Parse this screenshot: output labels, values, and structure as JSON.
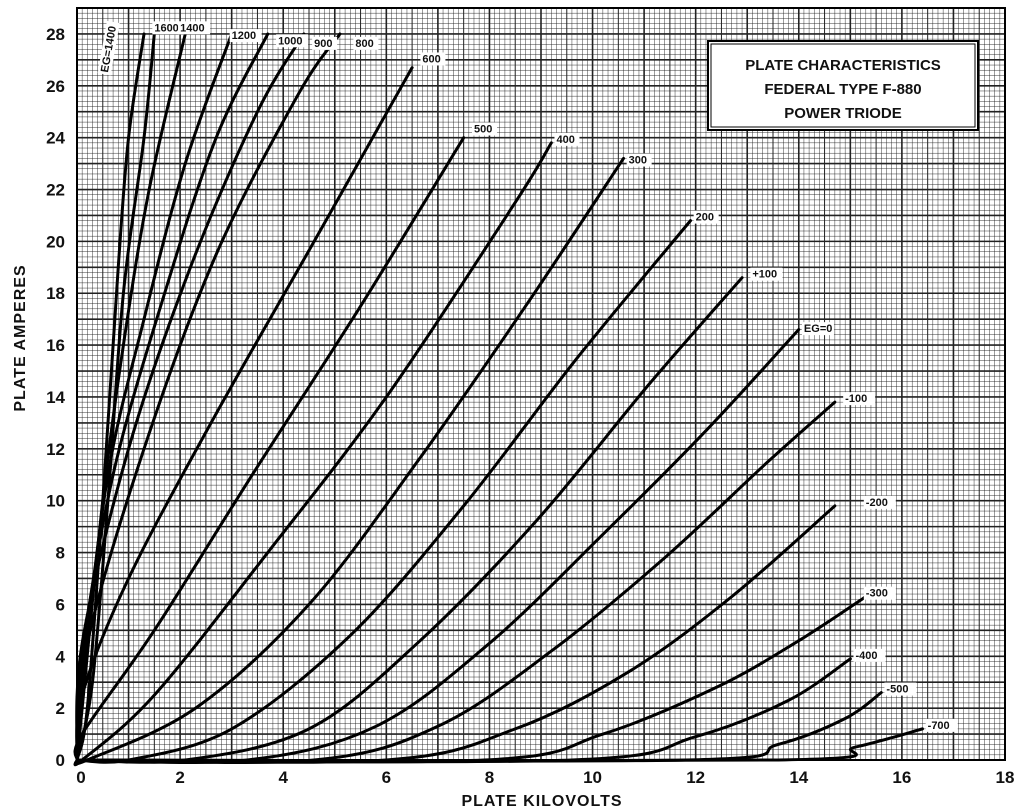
{
  "chart_data": {
    "type": "line",
    "title_lines": [
      "PLATE CHARACTERISTICS",
      "FEDERAL TYPE F-880",
      "POWER TRIODE"
    ],
    "xlabel": "PLATE KILOVOLTS",
    "ylabel": "PLATE AMPERES",
    "xlim": [
      0,
      18
    ],
    "ylim": [
      0,
      29
    ],
    "xticks": [
      0,
      2,
      4,
      6,
      8,
      10,
      12,
      14,
      16,
      18
    ],
    "yticks": [
      0,
      2,
      4,
      6,
      8,
      10,
      12,
      14,
      16,
      18,
      20,
      22,
      24,
      26,
      28
    ],
    "xtick_labels": [
      "0",
      "2",
      "4",
      "6",
      "8",
      "10",
      "12",
      "14",
      "16",
      "18"
    ],
    "ytick_labels": [
      "0",
      "2",
      "4",
      "6",
      "8",
      "10",
      "12",
      "14",
      "16",
      "18",
      "20",
      "22",
      "24",
      "26",
      "28"
    ],
    "grid": true,
    "series": [
      {
        "name": "EG=1400",
        "points": [
          [
            0.2,
            2
          ],
          [
            0.5,
            10
          ],
          [
            0.8,
            19
          ],
          [
            1.0,
            24
          ],
          [
            1.3,
            28
          ]
        ]
      },
      {
        "name": "1600",
        "points": [
          [
            0.3,
            3
          ],
          [
            0.6,
            10
          ],
          [
            0.9,
            18
          ],
          [
            1.3,
            24
          ],
          [
            1.5,
            28
          ]
        ]
      },
      {
        "name": "1400",
        "points": [
          [
            0.1,
            2
          ],
          [
            0.5,
            10
          ],
          [
            0.9,
            16
          ],
          [
            1.4,
            22
          ],
          [
            2.1,
            28
          ]
        ]
      },
      {
        "name": "1200",
        "points": [
          [
            0.1,
            3
          ],
          [
            0.6,
            11
          ],
          [
            1.3,
            17
          ],
          [
            2.1,
            23
          ],
          [
            3.0,
            28
          ]
        ]
      },
      {
        "name": "1000",
        "points": [
          [
            0.1,
            4
          ],
          [
            0.7,
            11
          ],
          [
            1.7,
            18
          ],
          [
            2.7,
            24
          ],
          [
            3.7,
            28
          ]
        ]
      },
      {
        "name": "900",
        "points": [
          [
            0.1,
            4.5
          ],
          [
            1.0,
            12
          ],
          [
            2.2,
            19
          ],
          [
            3.5,
            25
          ],
          [
            4.4,
            28
          ]
        ]
      },
      {
        "name": "800",
        "points": [
          [
            0.2,
            4.5
          ],
          [
            1.3,
            12
          ],
          [
            2.7,
            19.5
          ],
          [
            4.3,
            25.7
          ],
          [
            5.1,
            28
          ]
        ]
      },
      {
        "name": "600",
        "points": [
          [
            0.1,
            2.5
          ],
          [
            1.0,
            7
          ],
          [
            2.6,
            13
          ],
          [
            4.6,
            20
          ],
          [
            6.5,
            26.7
          ]
        ]
      },
      {
        "name": "500",
        "points": [
          [
            0.1,
            1
          ],
          [
            1.5,
            5
          ],
          [
            3.4,
            11
          ],
          [
            5.5,
            17.5
          ],
          [
            7.5,
            24
          ]
        ]
      },
      {
        "name": "400",
        "points": [
          [
            0.1,
            0
          ],
          [
            1.5,
            2.5
          ],
          [
            3.7,
            8
          ],
          [
            6.0,
            14
          ],
          [
            8.5,
            21.5
          ],
          [
            9.2,
            23.8
          ]
        ]
      },
      {
        "name": "300",
        "points": [
          [
            0.2,
            0
          ],
          [
            2.3,
            2
          ],
          [
            4.5,
            6
          ],
          [
            6.6,
            11.5
          ],
          [
            8.7,
            17.5
          ],
          [
            10.6,
            23.2
          ]
        ]
      },
      {
        "name": "200",
        "points": [
          [
            1.0,
            0
          ],
          [
            3.0,
            1.2
          ],
          [
            5.3,
            4.8
          ],
          [
            7.5,
            9.8
          ],
          [
            9.7,
            15.5
          ],
          [
            11.9,
            20.8
          ]
        ]
      },
      {
        "name": "+100",
        "points": [
          [
            2.1,
            0
          ],
          [
            4.5,
            1.2
          ],
          [
            6.6,
            4.5
          ],
          [
            8.9,
            9.2
          ],
          [
            11.1,
            14.5
          ],
          [
            12.9,
            18.6
          ]
        ]
      },
      {
        "name": "EG=0",
        "points": [
          [
            3.3,
            0
          ],
          [
            5.8,
            1.3
          ],
          [
            8.0,
            4.5
          ],
          [
            10.2,
            8.7
          ],
          [
            12.2,
            12.7
          ],
          [
            14.0,
            16.6
          ]
        ]
      },
      {
        "name": "-100",
        "points": [
          [
            4.6,
            0
          ],
          [
            7.0,
            1.3
          ],
          [
            9.2,
            4.2
          ],
          [
            11.4,
            7.8
          ],
          [
            13.4,
            11.5
          ],
          [
            14.7,
            13.8
          ]
        ]
      },
      {
        "name": "-200",
        "points": [
          [
            6.0,
            0
          ],
          [
            8.5,
            1.2
          ],
          [
            10.7,
            3.4
          ],
          [
            12.7,
            6.3
          ],
          [
            14.7,
            9.8
          ]
        ]
      },
      {
        "name": "-300",
        "points": [
          [
            7.9,
            0
          ],
          [
            10.2,
            1.0
          ],
          [
            12.4,
            2.8
          ],
          [
            14.0,
            4.6
          ],
          [
            15.3,
            6.3
          ]
        ]
      },
      {
        "name": "-400",
        "points": [
          [
            9.6,
            0
          ],
          [
            12.0,
            0.9
          ],
          [
            13.8,
            2.3
          ],
          [
            15.0,
            3.9
          ]
        ]
      },
      {
        "name": "-500",
        "points": [
          [
            11.8,
            0
          ],
          [
            13.6,
            0.6
          ],
          [
            14.9,
            1.6
          ],
          [
            15.6,
            2.6
          ]
        ]
      },
      {
        "name": "-700",
        "points": [
          [
            13.6,
            0
          ],
          [
            15.1,
            0.5
          ],
          [
            16.4,
            1.2
          ]
        ]
      }
    ],
    "curve_labels": [
      {
        "text": "EG=1400",
        "at": [
          0.6,
          26.5
        ],
        "rotate": -80
      },
      {
        "text": "1600",
        "at": [
          1.5,
          28.1
        ]
      },
      {
        "text": "1400",
        "at": [
          2.0,
          28.1
        ]
      },
      {
        "text": "1200",
        "at": [
          3.0,
          27.8
        ]
      },
      {
        "text": "1000",
        "at": [
          3.9,
          27.6
        ]
      },
      {
        "text": "900",
        "at": [
          4.6,
          27.5
        ]
      },
      {
        "text": "800",
        "at": [
          5.4,
          27.5
        ]
      },
      {
        "text": "600",
        "at": [
          6.7,
          26.9
        ]
      },
      {
        "text": "500",
        "at": [
          7.7,
          24.2
        ]
      },
      {
        "text": "400",
        "at": [
          9.3,
          23.8
        ]
      },
      {
        "text": "300",
        "at": [
          10.7,
          23.0
        ]
      },
      {
        "text": "200",
        "at": [
          12.0,
          20.8
        ]
      },
      {
        "text": "+100",
        "at": [
          13.1,
          18.6
        ]
      },
      {
        "text": "EG=0",
        "at": [
          14.1,
          16.5
        ]
      },
      {
        "text": "-100",
        "at": [
          14.9,
          13.8
        ]
      },
      {
        "text": "-200",
        "at": [
          15.3,
          9.8
        ]
      },
      {
        "text": "-300",
        "at": [
          15.3,
          6.3
        ]
      },
      {
        "text": "-400",
        "at": [
          15.1,
          3.9
        ]
      },
      {
        "text": "-500",
        "at": [
          15.7,
          2.6
        ]
      },
      {
        "text": "-700",
        "at": [
          16.5,
          1.2
        ]
      }
    ]
  }
}
